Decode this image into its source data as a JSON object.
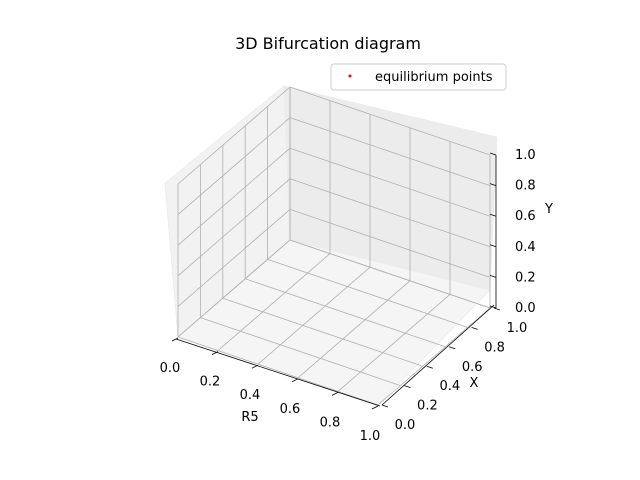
{
  "chart_data": {
    "type": "scatter",
    "title": "3D Bifurcation diagram",
    "xlabel": "R5",
    "ylabel": "X",
    "zlabel": "Y",
    "xlim": [
      0,
      1
    ],
    "ylim": [
      0,
      1
    ],
    "zlim": [
      0,
      1
    ],
    "xticks": [
      "0.0",
      "0.2",
      "0.4",
      "0.6",
      "0.8",
      "1.0"
    ],
    "yticks": [
      "0.0",
      "0.2",
      "0.4",
      "0.6",
      "0.8",
      "1.0"
    ],
    "zticks": [
      "0.0",
      "0.2",
      "0.4",
      "0.6",
      "0.8",
      "1.0"
    ],
    "grid": true,
    "legend_position": "top-right",
    "series": [
      {
        "name": "equilibrium points",
        "color": "#ff0000",
        "marker": "dot",
        "points": []
      }
    ]
  }
}
